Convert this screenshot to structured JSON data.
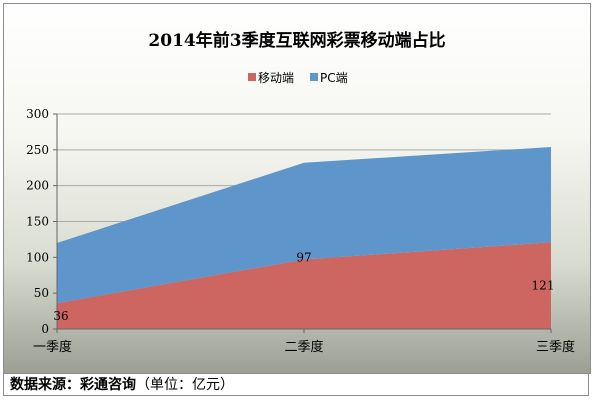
{
  "chart_data": {
    "type": "area",
    "stacked": true,
    "title": "2014年前3季度互联网彩票移动端占比",
    "categories": [
      "一季度",
      "二季度",
      "三季度"
    ],
    "series": [
      {
        "name": "移动端",
        "values": [
          36,
          97,
          121
        ],
        "color": "#cd6660"
      },
      {
        "name": "PC端",
        "values": [
          84,
          135,
          133
        ],
        "color": "#5e96cc"
      }
    ],
    "data_labels": [
      "36",
      "97",
      "121"
    ],
    "ylim": [
      0,
      300
    ],
    "yticks": [
      "0",
      "50",
      "100",
      "150",
      "200",
      "250",
      "300"
    ],
    "legend_position": "top-center",
    "grid": true
  },
  "footer": {
    "source_label": "数据来源：彩通咨询",
    "unit_label": "（单位：亿元）"
  }
}
